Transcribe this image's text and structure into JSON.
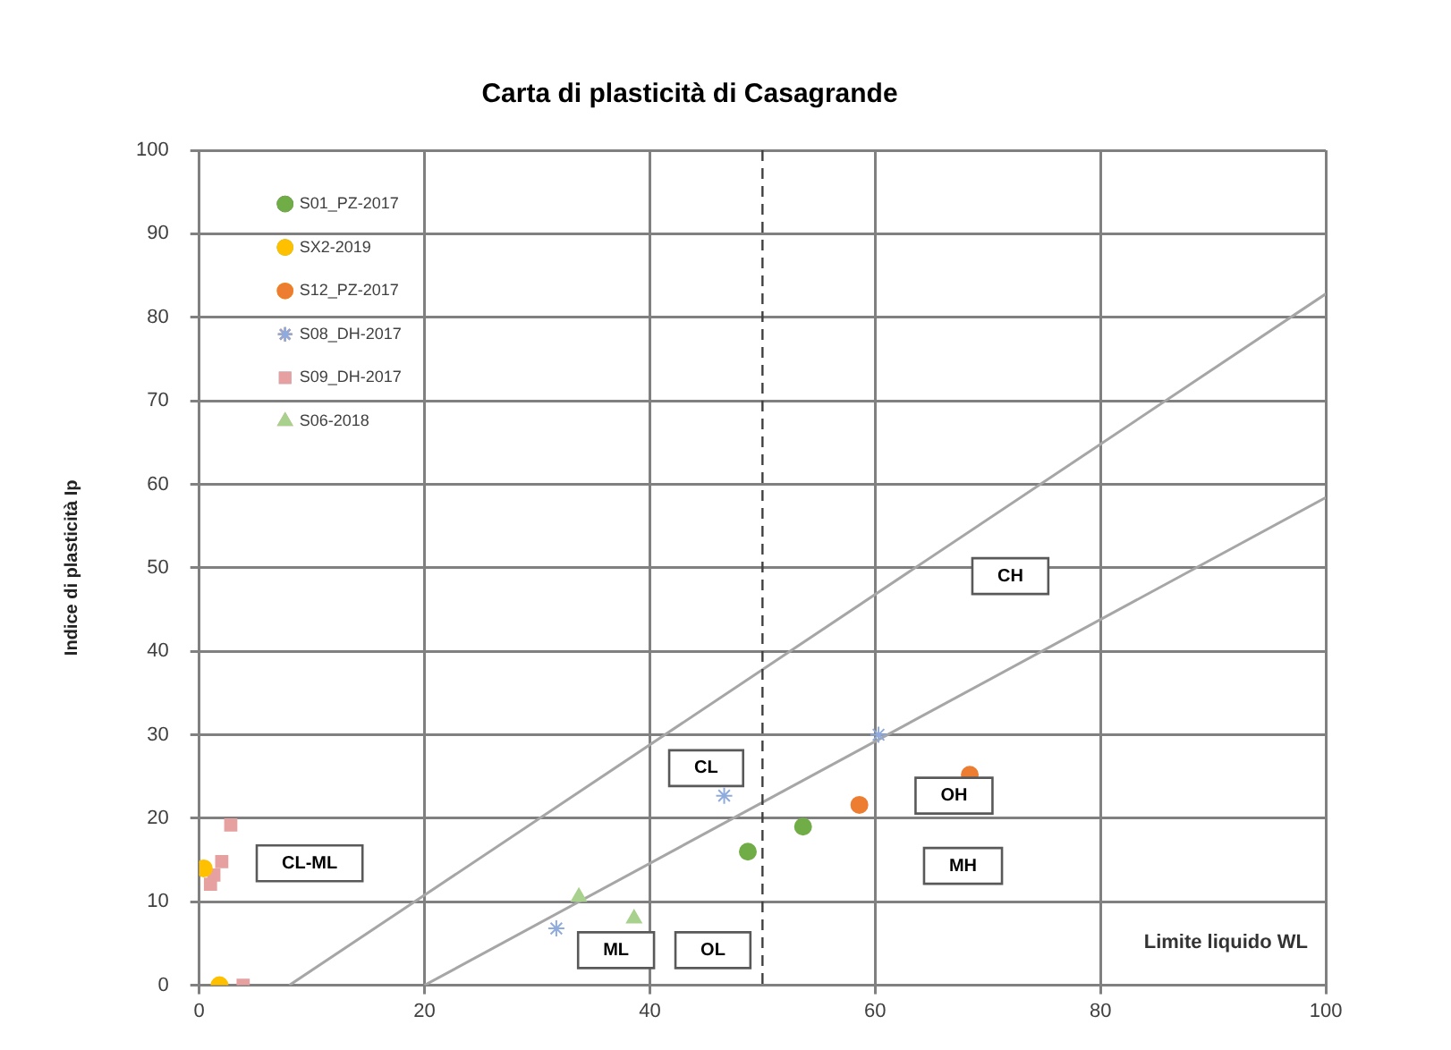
{
  "chart_data": {
    "type": "scatter",
    "title": "Carta di plasticità di Casagrande",
    "xlabel": "Limite liquido WL",
    "ylabel": "Indice di plasticità Ip",
    "xlim": [
      0,
      100
    ],
    "xticks": [
      0,
      20,
      40,
      60,
      80,
      100
    ],
    "ylim": [
      0,
      100
    ],
    "yticks": [
      0,
      10,
      20,
      30,
      40,
      50,
      60,
      70,
      80,
      90,
      100
    ],
    "grid": true,
    "legend": "top left",
    "series": [
      {
        "name": "S01_PZ-2017",
        "color": "#70ad47",
        "marker": "circle",
        "x": [
          48.7,
          53.6
        ],
        "values": [
          16,
          19
        ]
      },
      {
        "name": "SX2-2019",
        "color": "#ffc000",
        "marker": "circle",
        "x": [
          1.8,
          0.4
        ],
        "values": [
          0,
          14
        ]
      },
      {
        "name": "S12_PZ-2017",
        "color": "#ed7d31",
        "marker": "circle",
        "x": [
          58.6,
          68.4
        ],
        "values": [
          21.6,
          25.2
        ]
      },
      {
        "name": "S08_DH-2017",
        "color": "#8faadc",
        "marker": "cross",
        "x": [
          31.7,
          46.6,
          60.3
        ],
        "values": [
          6.8,
          22.7,
          30
        ]
      },
      {
        "name": "S09_DH-2017",
        "color": "#e6a0a0",
        "marker": "square",
        "x": [
          2.8,
          2,
          1.3,
          1,
          3.9
        ],
        "values": [
          19.2,
          14.8,
          13.2,
          12.1,
          0
        ]
      },
      {
        "name": "S06-2018",
        "color": "#a9d18e",
        "marker": "triangle",
        "x": [
          33.7,
          38.6
        ],
        "values": [
          10.6,
          8
        ]
      },
      {
        "type": "line",
        "color": "#a6a6a6",
        "x": [
          8,
          100
        ],
        "values": [
          0,
          82.8
        ]
      },
      {
        "type": "line",
        "color": "#a6a6a6",
        "x": [
          20,
          100
        ],
        "values": [
          0,
          58.4
        ]
      }
    ],
    "ref_lines": [
      {
        "axis": "x",
        "value": 50,
        "color": "#404040",
        "line_style": "dashed"
      }
    ],
    "annotations": [
      "CL-ML",
      "CL",
      "ML",
      "OL",
      "OH",
      "MH",
      "CH"
    ]
  }
}
